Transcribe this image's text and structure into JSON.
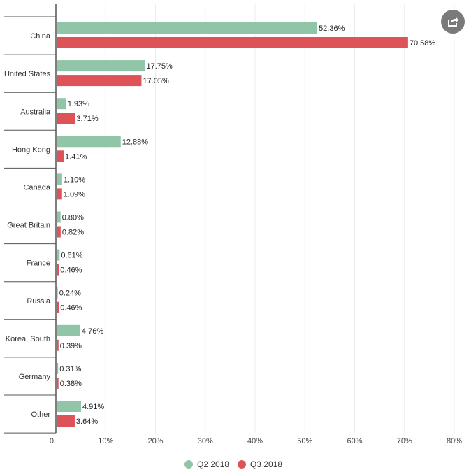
{
  "chart_data": {
    "type": "bar",
    "orientation": "horizontal",
    "categories": [
      "China",
      "United States",
      "Australia",
      "Hong Kong",
      "Canada",
      "Great Britain",
      "France",
      "Russia",
      "Korea, South",
      "Germany",
      "Other"
    ],
    "series": [
      {
        "name": "Q2 2018",
        "color": "#90c5a8",
        "values": [
          52.36,
          17.75,
          1.93,
          12.88,
          1.1,
          0.8,
          0.61,
          0.24,
          4.76,
          0.31,
          4.91
        ],
        "labels": [
          "52.36%",
          "17.75%",
          "1.93%",
          "12.88%",
          "1.10%",
          "0.80%",
          "0.61%",
          "0.24%",
          "4.76%",
          "0.31%",
          "4.91%"
        ]
      },
      {
        "name": "Q3 2018",
        "color": "#dd5357",
        "values": [
          70.58,
          17.05,
          3.71,
          1.41,
          1.09,
          0.82,
          0.46,
          0.46,
          0.39,
          0.38,
          3.64
        ],
        "labels": [
          "70.58%",
          "17.05%",
          "3.71%",
          "1.41%",
          "1.09%",
          "0.82%",
          "0.46%",
          "0.46%",
          "0.39%",
          "0.38%",
          "3.64%"
        ]
      }
    ],
    "xlim": [
      0,
      80
    ],
    "xticks": [
      0,
      10,
      20,
      30,
      40,
      50,
      60,
      70,
      80
    ],
    "xtick_labels": [
      "0",
      "10%",
      "20%",
      "30%",
      "40%",
      "50%",
      "60%",
      "70%",
      "80%"
    ],
    "grid": true,
    "legend_position": "bottom-center"
  },
  "toolbar": {
    "share_icon": "share-icon"
  }
}
